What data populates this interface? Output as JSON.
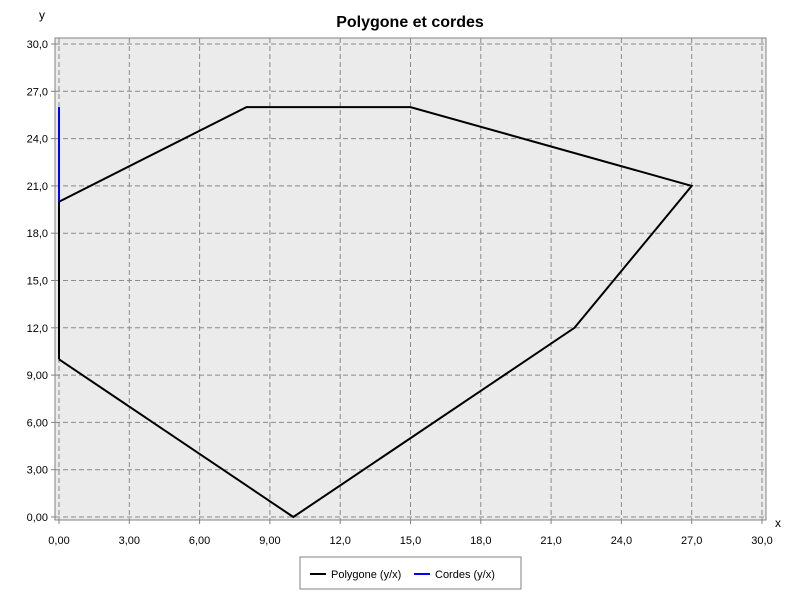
{
  "chart_data": {
    "type": "line",
    "title": "Polygone et cordes",
    "xlabel": "x",
    "ylabel": "y",
    "xlim": [
      0,
      30
    ],
    "ylim": [
      0,
      30
    ],
    "x_ticks": [
      "0,00",
      "3,00",
      "6,00",
      "9,00",
      "12,0",
      "15,0",
      "18,0",
      "21,0",
      "24,0",
      "27,0",
      "30,0"
    ],
    "y_ticks": [
      "0,00",
      "3,00",
      "6,00",
      "9,00",
      "12,0",
      "15,0",
      "18,0",
      "21,0",
      "24,0",
      "27,0",
      "30,0"
    ],
    "grid": true,
    "legend_position": "bottom",
    "series": [
      {
        "name": "Polygone (y/x)",
        "color": "#000000",
        "points": [
          [
            0,
            10
          ],
          [
            10,
            0
          ],
          [
            22,
            12
          ],
          [
            27,
            21
          ],
          [
            15,
            26
          ],
          [
            8,
            26
          ],
          [
            0,
            20
          ],
          [
            0,
            10
          ]
        ]
      },
      {
        "name": "Cordes (y/x)",
        "color": "#0000ff",
        "points": [
          [
            0,
            20
          ],
          [
            0,
            26
          ]
        ]
      }
    ]
  }
}
